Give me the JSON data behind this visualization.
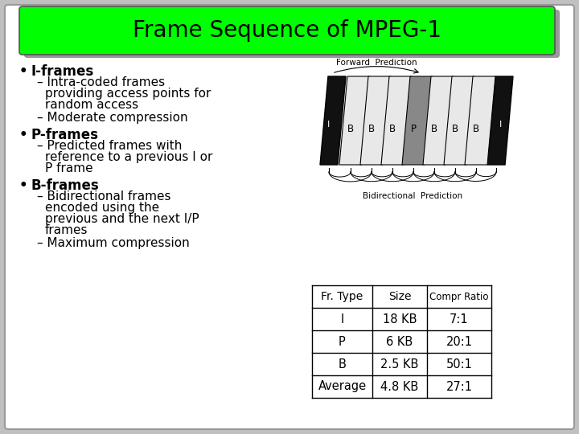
{
  "title": "Frame Sequence of MPEG-1",
  "title_bg": "#00ff00",
  "title_fontsize": 20,
  "bg_color": "#c0c0c0",
  "slide_bg": "#ffffff",
  "bullets": [
    {
      "main": "I-frames",
      "subs": [
        "– Intra-coded frames\n    providing access points for\n    random access",
        "– Moderate compression"
      ]
    },
    {
      "main": "P-frames",
      "subs": [
        "– Predicted frames with\n    reference to a previous I or\n    P frame"
      ]
    },
    {
      "main": "B-frames",
      "subs": [
        "– Bidirectional frames\n    encoded using the\n    previous and the next I/P\n    frames",
        "– Maximum compression"
      ]
    }
  ],
  "table": {
    "headers": [
      "Fr. Type",
      "Size",
      "Compr Ratio"
    ],
    "rows": [
      [
        "I",
        "18 KB",
        "7:1"
      ],
      [
        "P",
        "6 KB",
        "20:1"
      ],
      [
        "B",
        "2.5 KB",
        "50:1"
      ],
      [
        "Average",
        "4.8 KB",
        "27:1"
      ]
    ]
  },
  "diagram_label_top": "Forward  Prediction",
  "diagram_label_bot": "Bidirectional  Prediction",
  "frame_labels": [
    "B",
    "B",
    "B",
    "P",
    "B",
    "B",
    "B"
  ],
  "frame_colors": {
    "I": "#ffffff",
    "B": "#e8e8e8",
    "P": "#888888"
  },
  "left_block_color": "#000000",
  "right_block_color": "#000000"
}
